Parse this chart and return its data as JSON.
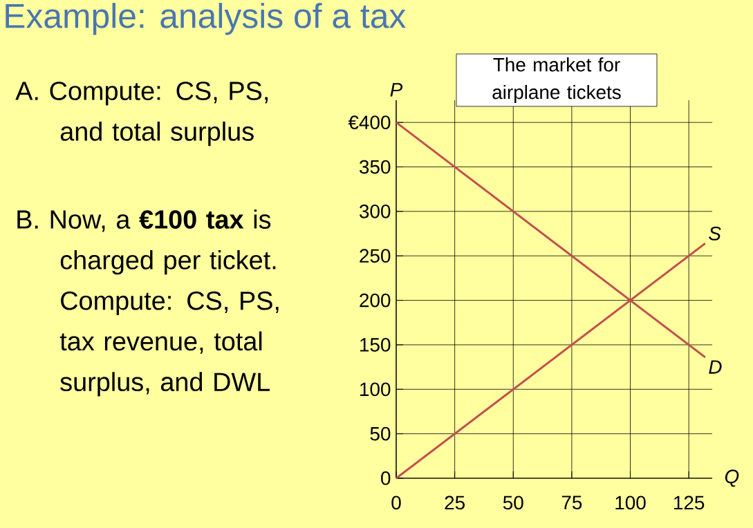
{
  "chart_data": {
    "type": "line",
    "title": "Example: analysis of a tax",
    "subtitle": "The market for airplane tickets",
    "xlabel": "Q",
    "ylabel": "P",
    "annotations": [
      "A. Compute: CS, PS, and total surplus",
      "B. Now, a **€100 tax** is charged per ticket. Compute: CS, PS, tax revenue, total surplus, and DWL"
    ],
    "x": [
      0,
      132
    ],
    "series": [
      {
        "name": "D",
        "color": "#c0504d",
        "values": [
          400,
          136
        ]
      },
      {
        "name": "S",
        "color": "#c0504d",
        "values": [
          0,
          264
        ]
      }
    ],
    "xlim": [
      0,
      135
    ],
    "ylim": [
      0,
      425
    ],
    "xticks": [
      0,
      25,
      50,
      75,
      100,
      125
    ],
    "yticks": [
      0,
      50,
      100,
      150,
      200,
      250,
      300,
      350,
      {
        "value": 400,
        "label": "€400"
      }
    ],
    "grid": true,
    "legend": false,
    "marker": "none",
    "line_style": "solid"
  }
}
